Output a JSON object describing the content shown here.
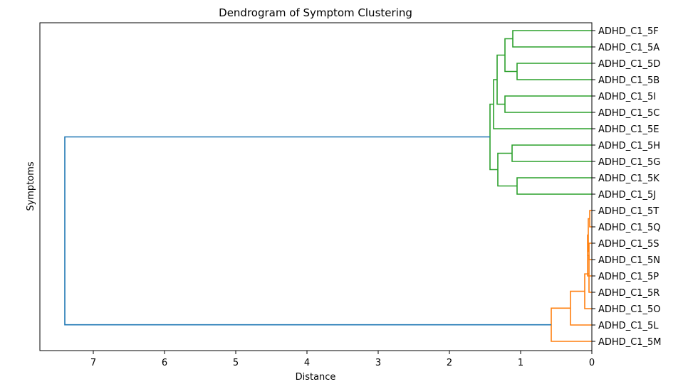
{
  "chart_data": {
    "type": "dendrogram",
    "title": "Dendrogram of Symptom Clustering",
    "xlabel": "Distance",
    "ylabel": "Symptoms",
    "orientation": "left",
    "xlim": [
      7.75,
      0
    ],
    "xticks": [
      7,
      6,
      5,
      4,
      3,
      2,
      1,
      0
    ],
    "leaves": [
      "ADHD_C1_5F",
      "ADHD_C1_5A",
      "ADHD_C1_5D",
      "ADHD_C1_5B",
      "ADHD_C1_5I",
      "ADHD_C1_5C",
      "ADHD_C1_5E",
      "ADHD_C1_5H",
      "ADHD_C1_5G",
      "ADHD_C1_5K",
      "ADHD_C1_5J",
      "ADHD_C1_5T",
      "ADHD_C1_5Q",
      "ADHD_C1_5S",
      "ADHD_C1_5N",
      "ADHD_C1_5P",
      "ADHD_C1_5R",
      "ADHD_C1_5O",
      "ADHD_C1_5L",
      "ADHD_C1_5M"
    ],
    "cluster_colors": {
      "upper": "#2ca02c",
      "lower": "#ff7f0e",
      "root": "#1f77b4"
    },
    "merges": [
      {
        "a": "ADHD_C1_5F",
        "b": "ADHD_C1_5A",
        "height": 1.11,
        "color": "#2ca02c"
      },
      {
        "a": "ADHD_C1_5D",
        "b": "ADHD_C1_5B",
        "height": 1.05,
        "color": "#2ca02c"
      },
      {
        "a": "ADHD_C1_5F+ADHD_C1_5A",
        "b": "ADHD_C1_5D+ADHD_C1_5B",
        "height": 1.22,
        "color": "#2ca02c"
      },
      {
        "a": "ADHD_C1_5I",
        "b": "ADHD_C1_5C",
        "height": 1.22,
        "color": "#2ca02c"
      },
      {
        "a": "ADHD_C1_5F..ADHD_C1_5B",
        "b": "ADHD_C1_5I+ADHD_C1_5C",
        "height": 1.33,
        "color": "#2ca02c"
      },
      {
        "a": "ADHD_C1_5F..ADHD_C1_5C",
        "b": "ADHD_C1_5E",
        "height": 1.38,
        "color": "#2ca02c"
      },
      {
        "a": "ADHD_C1_5H",
        "b": "ADHD_C1_5G",
        "height": 1.12,
        "color": "#2ca02c"
      },
      {
        "a": "ADHD_C1_5K",
        "b": "ADHD_C1_5J",
        "height": 1.05,
        "color": "#2ca02c"
      },
      {
        "a": "ADHD_C1_5H+ADHD_C1_5G",
        "b": "ADHD_C1_5K+ADHD_C1_5J",
        "height": 1.32,
        "color": "#2ca02c"
      },
      {
        "a": "ADHD_C1_5F..ADHD_C1_5E",
        "b": "ADHD_C1_5H..ADHD_C1_5J",
        "height": 1.43,
        "color": "#2ca02c"
      },
      {
        "a": "ADHD_C1_5T",
        "b": "ADHD_C1_5Q",
        "height": 0.03,
        "color": "#ff7f0e"
      },
      {
        "a": "ADHD_C1_5S",
        "b": "ADHD_C1_5N",
        "height": 0.04,
        "color": "#ff7f0e"
      },
      {
        "a": "ADHD_C1_5T+ADHD_C1_5Q",
        "b": "ADHD_C1_5S+ADHD_C1_5N",
        "height": 0.05,
        "color": "#ff7f0e"
      },
      {
        "a": "ADHD_C1_5T..ADHD_C1_5N",
        "b": "ADHD_C1_5P",
        "height": 0.06,
        "color": "#ff7f0e"
      },
      {
        "a": "ADHD_C1_5T..ADHD_C1_5P",
        "b": "ADHD_C1_5R",
        "height": 0.04,
        "color": "#ff7f0e"
      },
      {
        "a": "ADHD_C1_5P+ADHD_C1_5R",
        "b": "ADHD_C1_5O",
        "height": 0.1,
        "color": "#ff7f0e"
      },
      {
        "a": "ADHD_C1_5T..ADHD_C1_5O",
        "b": "ADHD_C1_5L",
        "height": 0.3,
        "color": "#ff7f0e"
      },
      {
        "a": "ADHD_C1_5T..ADHD_C1_5L",
        "b": "ADHD_C1_5M",
        "height": 0.57,
        "color": "#ff7f0e"
      },
      {
        "a": "upper_cluster",
        "b": "lower_cluster",
        "height": 7.4,
        "color": "#1f77b4"
      }
    ],
    "grid": false,
    "legend": "none"
  }
}
